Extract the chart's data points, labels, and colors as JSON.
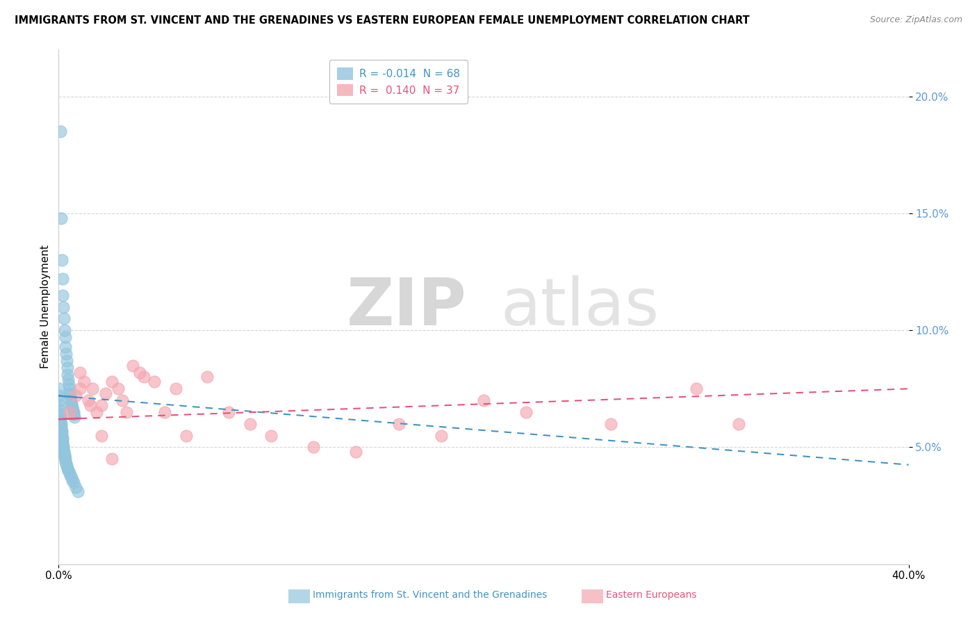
{
  "title": "IMMIGRANTS FROM ST. VINCENT AND THE GRENADINES VS EASTERN EUROPEAN FEMALE UNEMPLOYMENT CORRELATION CHART",
  "source": "Source: ZipAtlas.com",
  "ylabel": "Female Unemployment",
  "yticks": [
    "20.0%",
    "15.0%",
    "10.0%",
    "5.0%"
  ],
  "ytick_vals": [
    0.2,
    0.15,
    0.1,
    0.05
  ],
  "xlim": [
    0.0,
    0.4
  ],
  "ylim": [
    0.0,
    0.22
  ],
  "legend1_R": "R = ",
  "legend1_R_val": "-0.014",
  "legend1_N": "  N = ",
  "legend1_N_val": "68",
  "legend2_R": "R =  ",
  "legend2_R_val": "0.140",
  "legend2_N": "  N = ",
  "legend2_N_val": "37",
  "legend_xlabel": "Immigrants from St. Vincent and the Grenadines",
  "legend_xlabel2": "Eastern Europeans",
  "blue_color": "#92c5de",
  "pink_color": "#f4a6b0",
  "blue_line_color": "#4393c3",
  "pink_line_color": "#e8537a",
  "watermark_zip": "ZIP",
  "watermark_atlas": "atlas",
  "blue_scatter_x": [
    0.0008,
    0.0012,
    0.0015,
    0.0018,
    0.002,
    0.0022,
    0.0025,
    0.0028,
    0.003,
    0.0032,
    0.0035,
    0.0038,
    0.004,
    0.0042,
    0.0045,
    0.0048,
    0.005,
    0.0052,
    0.0055,
    0.0058,
    0.006,
    0.0062,
    0.0065,
    0.0068,
    0.007,
    0.0072,
    0.0075,
    0.0002,
    0.0003,
    0.0004,
    0.0005,
    0.0006,
    0.0007,
    0.0008,
    0.0009,
    0.001,
    0.0011,
    0.0012,
    0.0013,
    0.0014,
    0.0015,
    0.0016,
    0.0017,
    0.0018,
    0.0019,
    0.002,
    0.0021,
    0.0022,
    0.0023,
    0.0024,
    0.0025,
    0.0026,
    0.0027,
    0.0028,
    0.0029,
    0.003,
    0.0032,
    0.0035,
    0.0038,
    0.0042,
    0.0045,
    0.005,
    0.0055,
    0.006,
    0.0065,
    0.007,
    0.008,
    0.009
  ],
  "blue_scatter_y": [
    0.185,
    0.148,
    0.13,
    0.122,
    0.115,
    0.11,
    0.105,
    0.1,
    0.097,
    0.093,
    0.09,
    0.087,
    0.084,
    0.081,
    0.079,
    0.077,
    0.075,
    0.073,
    0.072,
    0.07,
    0.069,
    0.068,
    0.067,
    0.066,
    0.065,
    0.064,
    0.063,
    0.075,
    0.072,
    0.07,
    0.068,
    0.066,
    0.064,
    0.063,
    0.062,
    0.061,
    0.06,
    0.059,
    0.058,
    0.057,
    0.056,
    0.055,
    0.054,
    0.053,
    0.052,
    0.051,
    0.05,
    0.05,
    0.049,
    0.048,
    0.048,
    0.047,
    0.047,
    0.046,
    0.046,
    0.045,
    0.044,
    0.043,
    0.042,
    0.041,
    0.04,
    0.039,
    0.038,
    0.037,
    0.036,
    0.035,
    0.033,
    0.031
  ],
  "pink_scatter_x": [
    0.005,
    0.008,
    0.01,
    0.012,
    0.014,
    0.016,
    0.018,
    0.02,
    0.022,
    0.025,
    0.028,
    0.03,
    0.032,
    0.035,
    0.038,
    0.04,
    0.045,
    0.05,
    0.055,
    0.06,
    0.07,
    0.08,
    0.09,
    0.1,
    0.12,
    0.14,
    0.16,
    0.18,
    0.2,
    0.22,
    0.26,
    0.3,
    0.32,
    0.01,
    0.015,
    0.02,
    0.025
  ],
  "pink_scatter_y": [
    0.065,
    0.072,
    0.082,
    0.078,
    0.07,
    0.075,
    0.065,
    0.068,
    0.073,
    0.078,
    0.075,
    0.07,
    0.065,
    0.085,
    0.082,
    0.08,
    0.078,
    0.065,
    0.075,
    0.055,
    0.08,
    0.065,
    0.06,
    0.055,
    0.05,
    0.048,
    0.06,
    0.055,
    0.07,
    0.065,
    0.06,
    0.075,
    0.06,
    0.075,
    0.068,
    0.055,
    0.045
  ],
  "blue_trend_y_start": 0.072,
  "blue_trend_y_end": 0.0425,
  "pink_trend_y_start": 0.062,
  "pink_trend_y_end": 0.075
}
